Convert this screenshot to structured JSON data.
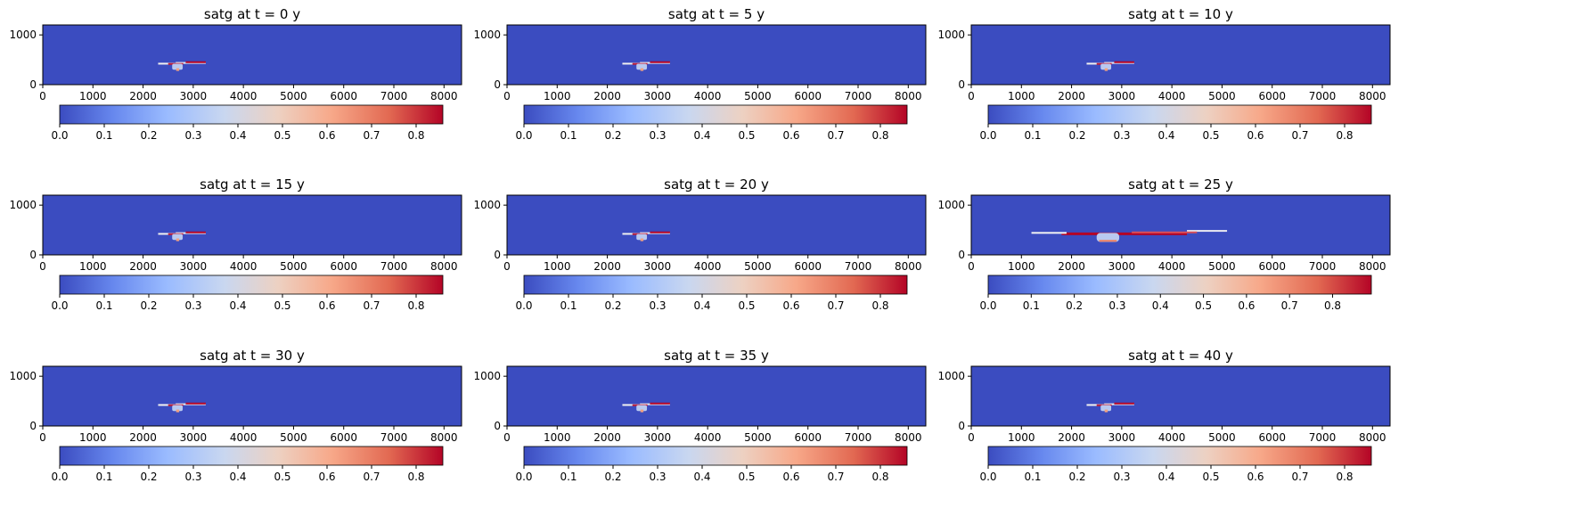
{
  "chart_data": [
    {
      "type": "heatmap",
      "title": "satg at t = 0 y",
      "xlim": [
        0,
        8350
      ],
      "ylim": [
        0,
        1200
      ],
      "xticks": [
        0,
        1000,
        2000,
        3000,
        4000,
        5000,
        6000,
        7000,
        8000
      ],
      "yticks": [
        0,
        1000
      ],
      "colorbar": {
        "cmap": "coolwarm",
        "range": [
          0,
          0.86
        ],
        "ticks": [
          0.0,
          0.1,
          0.2,
          0.3,
          0.4,
          0.5,
          0.6,
          0.7,
          0.8
        ]
      },
      "plume": {
        "x_range": [
          2300,
          3250
        ],
        "depth_range": [
          300,
          470
        ]
      }
    },
    {
      "type": "heatmap",
      "title": "satg at t = 5 y",
      "xlim": [
        0,
        8350
      ],
      "ylim": [
        0,
        1200
      ],
      "xticks": [
        0,
        1000,
        2000,
        3000,
        4000,
        5000,
        6000,
        7000,
        8000
      ],
      "yticks": [
        0,
        1000
      ],
      "colorbar": {
        "cmap": "coolwarm",
        "range": [
          0,
          0.86
        ],
        "ticks": [
          0.0,
          0.1,
          0.2,
          0.3,
          0.4,
          0.5,
          0.6,
          0.7,
          0.8
        ]
      },
      "plume": {
        "x_range": [
          2300,
          3250
        ],
        "depth_range": [
          300,
          470
        ]
      }
    },
    {
      "type": "heatmap",
      "title": "satg at t = 10 y",
      "xlim": [
        0,
        8350
      ],
      "ylim": [
        0,
        1200
      ],
      "xticks": [
        0,
        1000,
        2000,
        3000,
        4000,
        5000,
        6000,
        7000,
        8000
      ],
      "yticks": [
        0,
        1000
      ],
      "colorbar": {
        "cmap": "coolwarm",
        "range": [
          0,
          0.86
        ],
        "ticks": [
          0.0,
          0.1,
          0.2,
          0.3,
          0.4,
          0.5,
          0.6,
          0.7,
          0.8
        ]
      },
      "plume": {
        "x_range": [
          2300,
          3250
        ],
        "depth_range": [
          300,
          470
        ]
      }
    },
    {
      "type": "heatmap",
      "title": "satg at t = 15 y",
      "xlim": [
        0,
        8350
      ],
      "ylim": [
        0,
        1200
      ],
      "xticks": [
        0,
        1000,
        2000,
        3000,
        4000,
        5000,
        6000,
        7000,
        8000
      ],
      "yticks": [
        0,
        1000
      ],
      "colorbar": {
        "cmap": "coolwarm",
        "range": [
          0,
          0.86
        ],
        "ticks": [
          0.0,
          0.1,
          0.2,
          0.3,
          0.4,
          0.5,
          0.6,
          0.7,
          0.8
        ]
      },
      "plume": {
        "x_range": [
          2300,
          3250
        ],
        "depth_range": [
          300,
          470
        ]
      }
    },
    {
      "type": "heatmap",
      "title": "satg at t = 20 y",
      "xlim": [
        0,
        8350
      ],
      "ylim": [
        0,
        1200
      ],
      "xticks": [
        0,
        1000,
        2000,
        3000,
        4000,
        5000,
        6000,
        7000,
        8000
      ],
      "yticks": [
        0,
        1000
      ],
      "colorbar": {
        "cmap": "coolwarm",
        "range": [
          0,
          0.86
        ],
        "ticks": [
          0.0,
          0.1,
          0.2,
          0.3,
          0.4,
          0.5,
          0.6,
          0.7,
          0.8
        ]
      },
      "plume": {
        "x_range": [
          2300,
          3250
        ],
        "depth_range": [
          300,
          470
        ]
      }
    },
    {
      "type": "heatmap",
      "title": "satg at t = 25 y",
      "xlim": [
        0,
        8350
      ],
      "ylim": [
        0,
        1200
      ],
      "xticks": [
        0,
        1000,
        2000,
        3000,
        4000,
        5000,
        6000,
        7000,
        8000
      ],
      "yticks": [
        0,
        1000
      ],
      "colorbar": {
        "cmap": "coolwarm",
        "range": [
          0,
          0.89
        ],
        "ticks": [
          0.0,
          0.1,
          0.2,
          0.3,
          0.4,
          0.5,
          0.6,
          0.7,
          0.8
        ]
      },
      "plume": {
        "x_range": [
          1200,
          5100
        ],
        "depth_range": [
          250,
          520
        ]
      }
    },
    {
      "type": "heatmap",
      "title": "satg at t = 30 y",
      "xlim": [
        0,
        8350
      ],
      "ylim": [
        0,
        1200
      ],
      "xticks": [
        0,
        1000,
        2000,
        3000,
        4000,
        5000,
        6000,
        7000,
        8000
      ],
      "yticks": [
        0,
        1000
      ],
      "colorbar": {
        "cmap": "coolwarm",
        "range": [
          0,
          0.86
        ],
        "ticks": [
          0.0,
          0.1,
          0.2,
          0.3,
          0.4,
          0.5,
          0.6,
          0.7,
          0.8
        ]
      },
      "plume": {
        "x_range": [
          2300,
          3250
        ],
        "depth_range": [
          300,
          470
        ]
      }
    },
    {
      "type": "heatmap",
      "title": "satg at t = 35 y",
      "xlim": [
        0,
        8350
      ],
      "ylim": [
        0,
        1200
      ],
      "xticks": [
        0,
        1000,
        2000,
        3000,
        4000,
        5000,
        6000,
        7000,
        8000
      ],
      "yticks": [
        0,
        1000
      ],
      "colorbar": {
        "cmap": "coolwarm",
        "range": [
          0,
          0.86
        ],
        "ticks": [
          0.0,
          0.1,
          0.2,
          0.3,
          0.4,
          0.5,
          0.6,
          0.7,
          0.8
        ]
      },
      "plume": {
        "x_range": [
          2300,
          3250
        ],
        "depth_range": [
          300,
          470
        ]
      }
    },
    {
      "type": "heatmap",
      "title": "satg at t = 40 y",
      "xlim": [
        0,
        8350
      ],
      "ylim": [
        0,
        1200
      ],
      "xticks": [
        0,
        1000,
        2000,
        3000,
        4000,
        5000,
        6000,
        7000,
        8000
      ],
      "yticks": [
        0,
        1000
      ],
      "colorbar": {
        "cmap": "coolwarm",
        "range": [
          0,
          0.86
        ],
        "ticks": [
          0.0,
          0.1,
          0.2,
          0.3,
          0.4,
          0.5,
          0.6,
          0.7,
          0.8
        ]
      },
      "plume": {
        "x_range": [
          2300,
          3250
        ],
        "depth_range": [
          300,
          470
        ]
      }
    }
  ],
  "colors": {
    "background_low": "#3b4cc0",
    "colormap_stops": [
      "#3b4cc0",
      "#6788ee",
      "#9abbff",
      "#c9d7f0",
      "#edd1c2",
      "#f7a889",
      "#e26952",
      "#b40426"
    ]
  }
}
